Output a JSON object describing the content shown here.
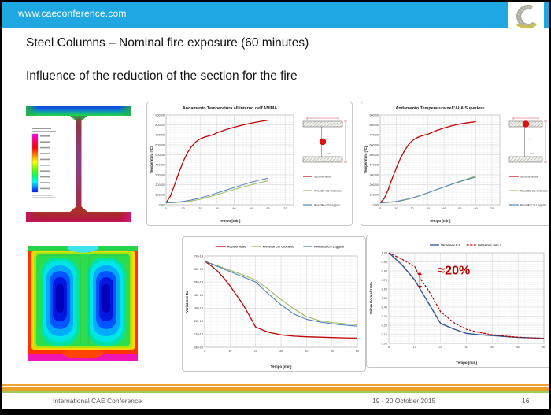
{
  "header": {
    "url": "www.caeconference.com"
  },
  "slide": {
    "title": "Steel Columns – Nominal fire exposure (60 minutes)",
    "subtitle": "Influence of the reduction of the section for the fire"
  },
  "footer": {
    "conference": "International CAE Conference",
    "date": "19 - 20 October 2015",
    "page": "16"
  },
  "colors": {
    "header_blue": "#1ea7e1",
    "footer_orange": "#ef9f27",
    "footer_green": "#97ce57",
    "series_red": "#c00000",
    "series_green": "#9bbb59",
    "series_blue": "#4f81bd",
    "series_navy": "#2e5396"
  },
  "fem_images": [
    {
      "name": "i-beam-thermal-contour"
    },
    {
      "name": "encased-section-thermal-contour"
    }
  ],
  "chart_data": [
    {
      "id": "anima",
      "type": "line",
      "title": "Andamento Temperatura all'interno dell'ANIMA",
      "xlabel": "Tempo [min]",
      "ylabel": "Temperatura [°C]",
      "xlim": [
        0,
        75
      ],
      "ylim": [
        0,
        900
      ],
      "xminor": 2.5,
      "yminor": 25,
      "xticks": [
        0,
        10,
        20,
        30,
        40,
        50,
        60,
        70
      ],
      "ytick_vals": [
        0,
        100,
        200,
        300,
        400,
        500,
        600,
        700,
        800,
        900
      ],
      "ytick_labels": [
        "0.00",
        "100.00",
        "200.00",
        "300.00",
        "400.00",
        "500.00",
        "600.00",
        "700.00",
        "800.00",
        "900.00"
      ],
      "legend_position": "right",
      "icon": "ibeam-web-dot",
      "series": [
        {
          "name": "Sezione Nuda",
          "color": "#c00000",
          "width": 1.3,
          "dash": "",
          "x": [
            0,
            2.5,
            5,
            7.5,
            10,
            12.5,
            15,
            17.5,
            20,
            22.5,
            25,
            27.5,
            30,
            35,
            40,
            45,
            50,
            55,
            60
          ],
          "y": [
            20,
            85,
            200,
            320,
            430,
            520,
            585,
            630,
            660,
            678,
            690,
            700,
            722,
            752,
            778,
            800,
            818,
            834,
            848
          ]
        },
        {
          "name": "Rivestito Cls Ordinario",
          "color": "#9bbb59",
          "width": 1,
          "dash": "",
          "x": [
            0,
            5,
            10,
            15,
            20,
            25,
            30,
            35,
            40,
            45,
            50,
            55,
            60
          ],
          "y": [
            18,
            21,
            27,
            38,
            55,
            78,
            102,
            128,
            153,
            178,
            200,
            221,
            240
          ]
        },
        {
          "name": "Rivestito Cls Leggero",
          "color": "#4f81bd",
          "width": 1,
          "dash": "",
          "x": [
            0,
            5,
            10,
            15,
            20,
            25,
            30,
            35,
            40,
            45,
            50,
            55,
            60
          ],
          "y": [
            20,
            24,
            33,
            48,
            68,
            92,
            118,
            146,
            173,
            200,
            225,
            247,
            266
          ]
        }
      ]
    },
    {
      "id": "ala",
      "type": "line",
      "title": "Andamento Temperatura nell'ALA Superiore",
      "xlabel": "Tempo [min]",
      "ylabel": "Temperatura [°C]",
      "xlim": [
        0,
        75
      ],
      "ylim": [
        0,
        900
      ],
      "xminor": 2.5,
      "yminor": 25,
      "xticks": [
        0,
        10,
        20,
        30,
        40,
        50,
        60,
        70
      ],
      "ytick_vals": [
        0,
        100,
        200,
        300,
        400,
        500,
        600,
        700,
        800,
        900
      ],
      "ytick_labels": [
        "0.00",
        "100.00",
        "200.00",
        "300.00",
        "400.00",
        "500.00",
        "600.00",
        "700.00",
        "800.00",
        "900.00"
      ],
      "legend_position": "right",
      "icon": "ibeam-top-flange-dot",
      "series": [
        {
          "name": "Sezione Nuda",
          "color": "#c00000",
          "width": 1.3,
          "dash": "",
          "x": [
            0,
            2.5,
            5,
            7.5,
            10,
            12.5,
            15,
            17.5,
            20,
            22.5,
            25,
            27.5,
            30,
            35,
            40,
            45,
            50,
            55,
            60
          ],
          "y": [
            20,
            62,
            150,
            262,
            365,
            458,
            535,
            598,
            640,
            668,
            686,
            698,
            708,
            742,
            770,
            793,
            810,
            823,
            833
          ]
        },
        {
          "name": "Rivestito Cls Ordinario",
          "color": "#9bbb59",
          "width": 1,
          "dash": "",
          "x": [
            0,
            5,
            10,
            15,
            20,
            25,
            30,
            35,
            40,
            45,
            50,
            55,
            60
          ],
          "y": [
            18,
            22,
            30,
            45,
            66,
            91,
            119,
            149,
            179,
            208,
            236,
            262,
            288
          ]
        },
        {
          "name": "Rivestito Cls Leggero",
          "color": "#4f81bd",
          "width": 1,
          "dash": "",
          "x": [
            0,
            5,
            10,
            15,
            20,
            25,
            30,
            35,
            40,
            45,
            50,
            55,
            60
          ],
          "y": [
            20,
            25,
            34,
            49,
            69,
            93,
            121,
            150,
            178,
            206,
            232,
            256,
            277
          ]
        }
      ]
    },
    {
      "id": "ej",
      "type": "line",
      "title": "",
      "xlabel": "Tempo [min]",
      "ylabel": "Variazione EJ",
      "xlim": [
        0,
        60
      ],
      "ylim": [
        0,
        7
      ],
      "xminor": 2.5,
      "yminor": 0.25,
      "xticks": [
        0,
        10,
        20,
        30,
        40,
        50,
        60
      ],
      "ytick_vals": [
        0,
        1,
        2,
        3,
        4,
        5,
        6,
        7
      ],
      "ytick_labels": [
        "0E+00",
        "1E+13",
        "2E+13",
        "3E+13",
        "4E+13",
        "5E+13",
        "6E+13",
        "7E+13"
      ],
      "legend_position": "top",
      "series": [
        {
          "name": "Acciaio Nudo",
          "color": "#c00000",
          "width": 1.3,
          "dash": "",
          "x": [
            0,
            2.5,
            5,
            7.5,
            10,
            12.5,
            15,
            17.5,
            20,
            25,
            30,
            35,
            40,
            45,
            50,
            55,
            60
          ],
          "y": [
            6.6,
            6.25,
            5.85,
            5.3,
            4.7,
            4.0,
            3.3,
            2.45,
            1.55,
            1.15,
            0.95,
            0.85,
            0.8,
            0.77,
            0.74,
            0.72,
            0.7
          ]
        },
        {
          "name": "Rivestito Cls Ordinario",
          "color": "#9bbb59",
          "width": 1.1,
          "dash": "",
          "x": [
            0,
            5,
            10,
            15,
            20,
            25,
            30,
            35,
            40,
            45,
            50,
            55,
            60
          ],
          "y": [
            6.6,
            6.25,
            5.9,
            5.55,
            5.15,
            4.45,
            3.65,
            2.95,
            2.35,
            2.05,
            1.9,
            1.8,
            1.72
          ]
        },
        {
          "name": "Rivestito Cls Leggero",
          "color": "#4f81bd",
          "width": 1.1,
          "dash": "",
          "x": [
            0,
            5,
            10,
            15,
            20,
            25,
            30,
            35,
            40,
            45,
            50,
            55,
            60
          ],
          "y": [
            6.6,
            6.2,
            5.8,
            5.4,
            5.0,
            4.1,
            3.25,
            2.55,
            2.15,
            1.95,
            1.8,
            1.7,
            1.62
          ]
        }
      ]
    },
    {
      "id": "norm",
      "type": "line",
      "title": "",
      "xlabel": "Tempo [min]",
      "ylabel": "Valore Normalizzato",
      "xlim": [
        0,
        60
      ],
      "ylim": [
        0,
        1
      ],
      "xminor": 2.5,
      "yminor": 0.025,
      "xticks": [
        0,
        10,
        20,
        30,
        40,
        50,
        60
      ],
      "ytick_vals": [
        0,
        0.1,
        0.2,
        0.3,
        0.4,
        0.5,
        0.6,
        0.7,
        0.8,
        0.9,
        1.0
      ],
      "ytick_labels": [
        "0.00",
        "0.10",
        "0.20",
        "0.30",
        "0.40",
        "0.50",
        "0.60",
        "0.70",
        "0.80",
        "0.90",
        "1.00"
      ],
      "legend_position": "top",
      "annotation": {
        "text": "≈20%",
        "x": 19,
        "y": 0.76
      },
      "arrow": {
        "x": 12,
        "y1": 0.6,
        "y2": 0.79
      },
      "series": [
        {
          "name": "Variazione EJ",
          "color": "#2e5396",
          "width": 1.4,
          "dash": "",
          "x": [
            0,
            5,
            10,
            12.5,
            15,
            20,
            25,
            30,
            35,
            40,
            45,
            50,
            55,
            60
          ],
          "y": [
            1.0,
            0.87,
            0.7,
            0.58,
            0.46,
            0.22,
            0.16,
            0.11,
            0.095,
            0.085,
            0.075,
            0.065,
            0.06,
            0.055
          ]
        },
        {
          "name": "Variazione solo J",
          "color": "#c00000",
          "width": 1.2,
          "dash": "3 1.6",
          "x": [
            0,
            5,
            10,
            12.5,
            15,
            20,
            25,
            30,
            35,
            40,
            45,
            50,
            55,
            60
          ],
          "y": [
            1.0,
            0.93,
            0.85,
            0.7,
            0.6,
            0.35,
            0.23,
            0.155,
            0.12,
            0.095,
            0.08,
            0.067,
            0.06,
            0.055
          ]
        }
      ]
    }
  ]
}
